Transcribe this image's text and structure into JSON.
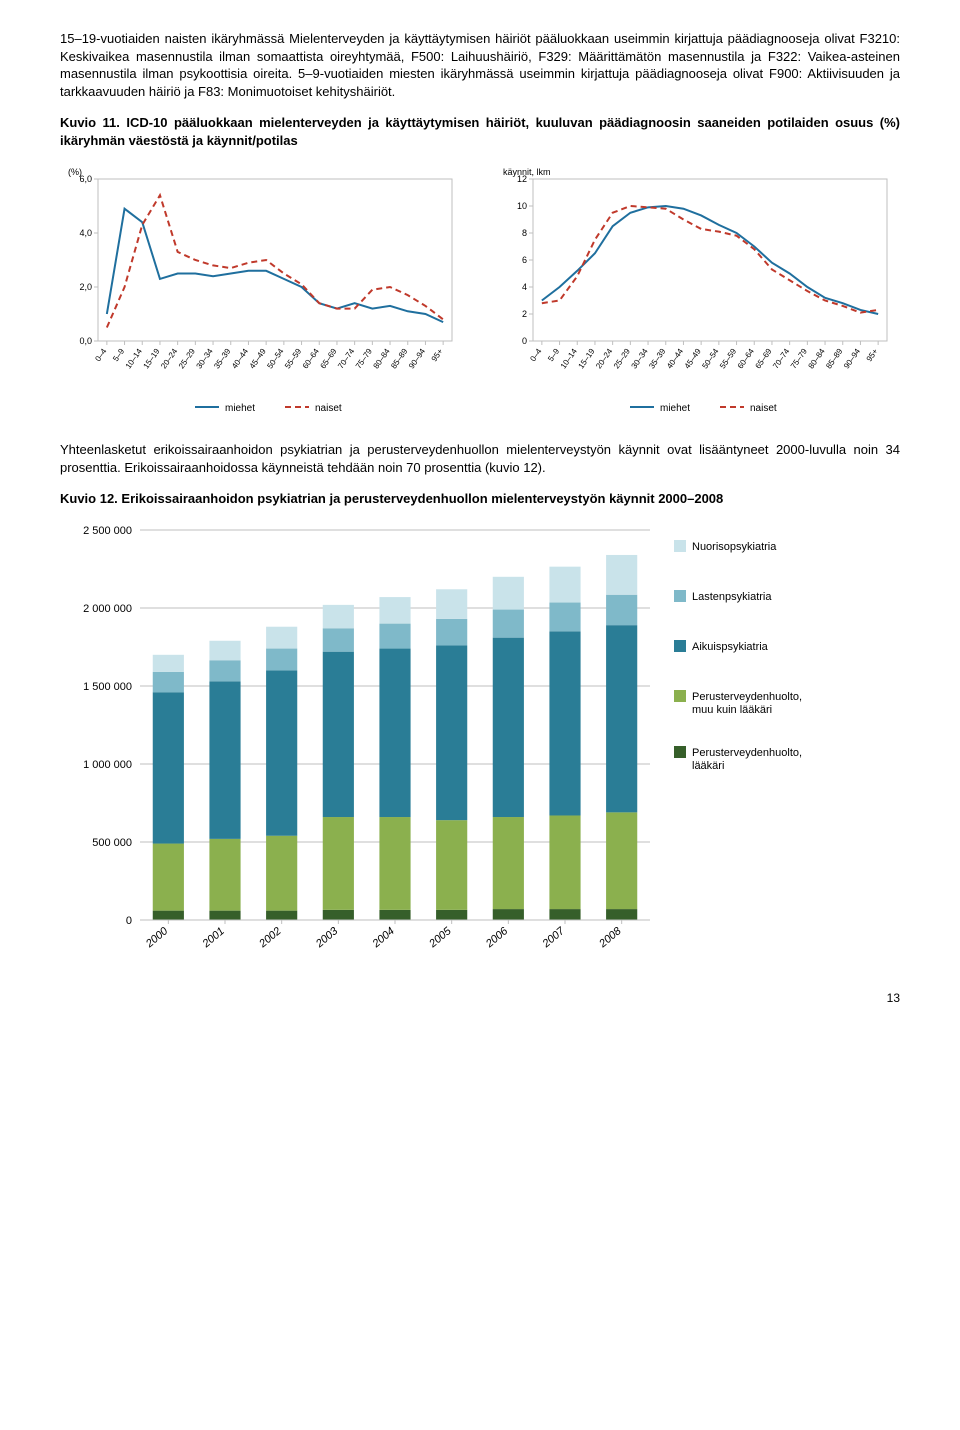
{
  "para1": "15–19-vuotiaiden naisten ikäryhmässä Mielenterveyden ja käyttäytymisen häiriöt pääluokkaan useimmin kirjattuja päädiagnooseja olivat F3210: Keskivaikea masennustila ilman somaattista oireyhtymää, F500: Laihuushäiriö, F329: Määrittämätön masennustila ja F322: Vaikea-asteinen masennustila ilman psykoottisia oireita. 5–9-vuotiaiden miesten ikäryhmässä useimmin kirjattuja päädiagnooseja olivat F900: Aktiivisuuden ja tarkkaavuuden häiriö ja F83: Monimuotoiset kehityshäiriöt.",
  "kuvio11_title": "Kuvio 11. ICD-10 pääluokkaan mielenterveyden ja käyttäytymisen häiriöt, kuuluvan päädiagnoosin saaneiden potilaiden osuus (%) ikäryhmän väestöstä ja käynnit/potilas",
  "para2": "Yhteenlasketut erikoissairaanhoidon psykiatrian ja perusterveydenhuollon mielenterveystyön käynnit ovat lisääntyneet 2000-luvulla noin 34 prosenttia. Erikoissairaanhoidossa käynneistä tehdään noin 70 prosenttia (kuvio 12).",
  "kuvio12_title": "Kuvio 12. Erikoissairaanhoidon psykiatrian ja perusterveydenhuollon mielenterveystyön käynnit 2000–2008",
  "chart1": {
    "type": "line",
    "ylabel": "(%)",
    "ylim": [
      0,
      6
    ],
    "ytick_step": 2,
    "yticks": [
      "0,0",
      "2,0",
      "4,0",
      "6,0"
    ],
    "categories": [
      "0–4",
      "5–9",
      "10–14",
      "15–19",
      "20–24",
      "25–29",
      "30–34",
      "35–39",
      "40–44",
      "45–49",
      "50–54",
      "55–59",
      "60–64",
      "65–69",
      "70–74",
      "75–79",
      "80–84",
      "85–89",
      "90–94",
      "95+"
    ],
    "series": [
      {
        "name": "miehet",
        "color": "#1f6f9e",
        "width": 2,
        "dash": "none",
        "values": [
          1.0,
          4.9,
          4.4,
          2.3,
          2.5,
          2.5,
          2.4,
          2.5,
          2.6,
          2.6,
          2.3,
          2.0,
          1.4,
          1.2,
          1.4,
          1.2,
          1.3,
          1.1,
          1.0,
          0.7
        ]
      },
      {
        "name": "naiset",
        "color": "#c0392b",
        "width": 2,
        "dash": "6,4",
        "values": [
          0.5,
          2.0,
          4.3,
          5.4,
          3.3,
          3.0,
          2.8,
          2.7,
          2.9,
          3.0,
          2.5,
          2.1,
          1.4,
          1.2,
          1.2,
          1.9,
          2.0,
          1.7,
          1.3,
          0.8
        ]
      }
    ],
    "background": "#ffffff",
    "border_color": "#bfbfbf",
    "tick_font_size": 8,
    "legend_font_size": 10
  },
  "chart2": {
    "type": "line",
    "ylabel": "käynnit, lkm",
    "ylim": [
      0,
      12
    ],
    "ytick_step": 2,
    "yticks": [
      "0",
      "2",
      "4",
      "6",
      "8",
      "10",
      "12"
    ],
    "categories": [
      "0–4",
      "5–9",
      "10–14",
      "15–19",
      "20–24",
      "25–29",
      "30–34",
      "35–39",
      "40–44",
      "45–49",
      "50–54",
      "55–59",
      "60–64",
      "65–69",
      "70–74",
      "75–79",
      "80–84",
      "85–89",
      "90–94",
      "95+"
    ],
    "series": [
      {
        "name": "miehet",
        "color": "#1f6f9e",
        "width": 2,
        "dash": "none",
        "values": [
          3.0,
          4.0,
          5.2,
          6.5,
          8.5,
          9.5,
          9.9,
          10.0,
          9.8,
          9.3,
          8.6,
          8.0,
          7.0,
          5.8,
          5.0,
          4.0,
          3.2,
          2.8,
          2.3,
          2.0
        ]
      },
      {
        "name": "naiset",
        "color": "#c0392b",
        "width": 2,
        "dash": "6,4",
        "values": [
          2.8,
          3.0,
          4.8,
          7.5,
          9.5,
          10.0,
          9.9,
          9.8,
          9.0,
          8.3,
          8.1,
          7.8,
          6.8,
          5.3,
          4.5,
          3.7,
          3.0,
          2.6,
          2.1,
          2.3
        ]
      }
    ],
    "background": "#ffffff",
    "border_color": "#bfbfbf",
    "tick_font_size": 8,
    "legend_font_size": 10
  },
  "chart3": {
    "type": "stacked-bar",
    "ylim": [
      0,
      2500000
    ],
    "ytick_step": 500000,
    "yticks": [
      "0",
      "500 000",
      "1 000 000",
      "1 500 000",
      "2 000 000",
      "2 500 000"
    ],
    "categories": [
      "2000",
      "2001",
      "2002",
      "2003",
      "2004",
      "2005",
      "2006",
      "2007",
      "2008"
    ],
    "series": [
      {
        "name": "Perusterveydenhuolto, lääkäri",
        "color": "#365f2a",
        "values": [
          60000,
          60000,
          60000,
          65000,
          65000,
          65000,
          70000,
          70000,
          70000
        ]
      },
      {
        "name": "Perusterveydenhuolto, muu kuin lääkäri",
        "color": "#8bb04e",
        "values": [
          430000,
          460000,
          480000,
          595000,
          595000,
          575000,
          590000,
          600000,
          620000
        ]
      },
      {
        "name": "Aikuispsykiatria",
        "color": "#2a7d96",
        "values": [
          970000,
          1010000,
          1060000,
          1060000,
          1080000,
          1120000,
          1150000,
          1180000,
          1200000
        ]
      },
      {
        "name": "Lastenpsykiatria",
        "color": "#7fb9c9",
        "values": [
          130000,
          135000,
          140000,
          150000,
          160000,
          170000,
          180000,
          185000,
          195000
        ]
      },
      {
        "name": "Nuorisopsykiatria",
        "color": "#c9e3ea",
        "values": [
          110000,
          125000,
          140000,
          150000,
          170000,
          190000,
          210000,
          230000,
          255000
        ]
      }
    ],
    "background": "#ffffff",
    "grid_color": "#bfbfbf",
    "bar_width": 0.55,
    "tick_font_size": 10,
    "legend_font_size": 11,
    "legend_marker_size": 12
  },
  "page_number": "13"
}
